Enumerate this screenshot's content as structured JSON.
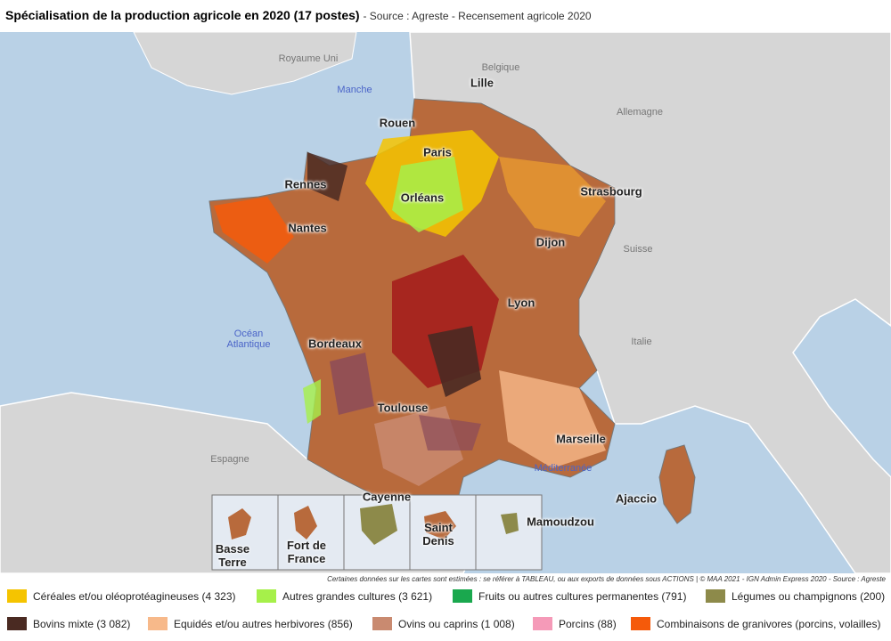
{
  "header": {
    "title": "Spécialisation de la production agricole en 2020 (17 postes)",
    "source": "- Source : Agreste - Recensement agricole 2020"
  },
  "map": {
    "countries": [
      "Royaume Uni",
      "Belgique",
      "Allemagne",
      "Suisse",
      "Italie",
      "Espagne"
    ],
    "seas": [
      "Manche",
      "Océan Atlantique",
      "Méditerranée"
    ],
    "cities": [
      "Lille",
      "Rouen",
      "Paris",
      "Strasbourg",
      "Rennes",
      "Orléans",
      "Nantes",
      "Dijon",
      "Lyon",
      "Bordeaux",
      "Toulouse",
      "Marseille",
      "Ajaccio"
    ],
    "insets": [
      "Basse Terre",
      "Cayenne",
      "Fort de France",
      "Saint Denis",
      "Mamoudzou"
    ]
  },
  "footnote": "Certaines données sur les cartes sont estimées : se référer à TABLEAU, ou aux exports de données sous ACTIONS | © MAA 2021 - IGN Admin Express 2020 - Source : Agreste",
  "legend": [
    {
      "label": "Céréales et/ou oléoprotéagineuses (4 323)",
      "color": "#f5c400"
    },
    {
      "label": "Autres grandes cultures (3 621)",
      "color": "#a6f04a"
    },
    {
      "label": "Fruits ou autres cultures permanentes (791)",
      "color": "#1aa84e"
    },
    {
      "label": "Légumes ou champignons (200)",
      "color": "#8d8a4a"
    },
    {
      "label": "Bovins mixte (3 082)",
      "color": "#4a2a22"
    },
    {
      "label": "Equidés et/ou autres herbivores (856)",
      "color": "#f7b98a"
    },
    {
      "label": "Ovins ou caprins (1 008)",
      "color": "#c98a70"
    },
    {
      "label": "Porcins (88)",
      "color": "#f59ab8"
    },
    {
      "label": "Combinaisons de granivores (porcins, volailles)",
      "color": "#f55a0a"
    }
  ]
}
